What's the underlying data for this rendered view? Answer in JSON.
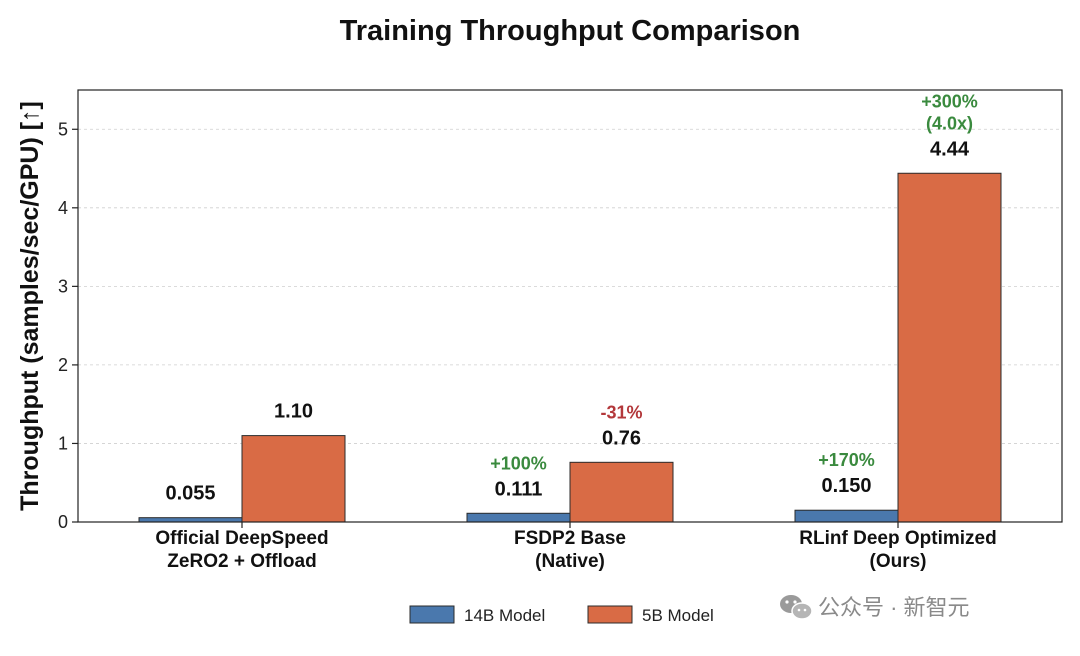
{
  "chart_data": {
    "type": "bar",
    "title": "Training Throughput Comparison",
    "ylabel": "Throughput (samples/sec/GPU) [↑]",
    "xlabel": "",
    "ylim": [
      0,
      5.5
    ],
    "yticks": [
      0,
      1,
      2,
      3,
      4,
      5
    ],
    "grid": "horizontal dashed",
    "legend_position": "bottom-center",
    "categories": [
      [
        "Official DeepSpeed",
        "ZeRO2 + Offload"
      ],
      [
        "FSDP2 Base",
        "(Native)"
      ],
      [
        "RLinf Deep Optimized",
        "(Ours)"
      ]
    ],
    "series": [
      {
        "name": "14B Model",
        "color": "#4a78ad",
        "values": [
          0.055,
          0.111,
          0.15
        ],
        "value_labels": [
          "0.055",
          "0.111",
          "0.150"
        ],
        "annotations": [
          null,
          {
            "lines": [
              "+100%"
            ],
            "color": "#3a8a3e"
          },
          {
            "lines": [
              "+170%"
            ],
            "color": "#3a8a3e"
          }
        ]
      },
      {
        "name": "5B Model",
        "color": "#d96b45",
        "values": [
          1.1,
          0.76,
          4.44
        ],
        "value_labels": [
          "1.10",
          "0.76",
          "4.44"
        ],
        "annotations": [
          null,
          {
            "lines": [
              "-31%"
            ],
            "color": "#b3383b"
          },
          {
            "lines": [
              "+300%",
              "(4.0x)"
            ],
            "color": "#3a8a3e"
          }
        ]
      }
    ]
  },
  "watermark": {
    "text": "公众号 · 新智元",
    "icon": "wechat-icon"
  }
}
